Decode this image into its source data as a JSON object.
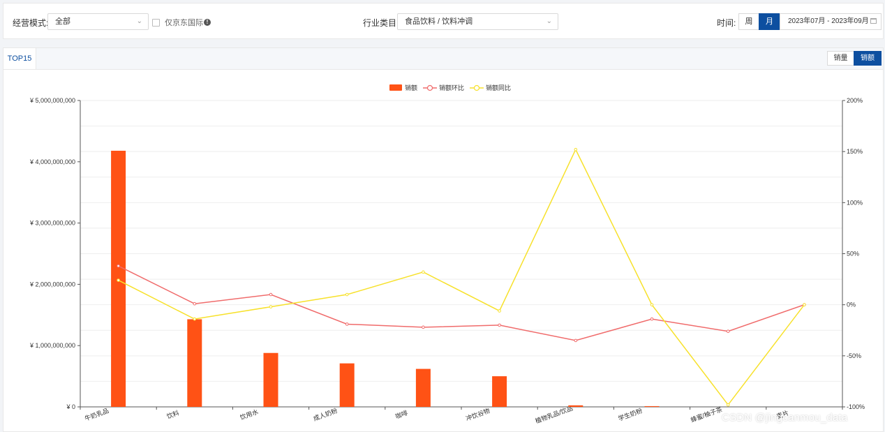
{
  "filters": {
    "mode_label": "经营模式:",
    "mode_value": "全部",
    "jd_intl_label": "仅京东国际",
    "industry_label": "行业类目:",
    "industry_value": "食品饮料 / 饮料冲调",
    "time_label": "时间:",
    "week_label": "周",
    "month_label": "月",
    "date_range": "2023年07月 - 2023年09月"
  },
  "tabs": {
    "top15": "TOP15"
  },
  "toggle": {
    "volume": "销量",
    "sales": "销额"
  },
  "legend": {
    "bar": "销额",
    "mom": "销额环比",
    "yoy": "销额同比"
  },
  "colors": {
    "bar": "#ff5215",
    "mom": "#f06b6b",
    "yoy": "#f7e12b",
    "accent": "#0d4fa0"
  },
  "chart_data": {
    "type": "bar+line",
    "categories": [
      "牛奶乳品",
      "饮料",
      "饮用水",
      "成人奶粉",
      "咖啡",
      "冲饮谷物",
      "植物乳品/饮品",
      "学生奶粉",
      "蜂蜜/柚子茶",
      "麦片"
    ],
    "left_axis": {
      "ylim": [
        0,
        5000000000
      ],
      "ticks": [
        "¥ 0",
        "¥ 1,000,000,000",
        "¥ 2,000,000,000",
        "¥ 3,000,000,000",
        "¥ 4,000,000,000",
        "¥ 5,000,000,000"
      ]
    },
    "right_axis": {
      "ylim": [
        -100,
        200
      ],
      "ticks": [
        "-100%",
        "-50%",
        "0%",
        "50%",
        "100%",
        "150%",
        "200%"
      ]
    },
    "series": [
      {
        "name": "销额",
        "type": "bar",
        "values": [
          4180000000,
          1430000000,
          880000000,
          710000000,
          620000000,
          500000000,
          25000000,
          12000000,
          0,
          0
        ]
      },
      {
        "name": "销额环比",
        "type": "line",
        "values": [
          38,
          1,
          10,
          -19,
          -22,
          -20,
          -35,
          -14,
          -26,
          0
        ]
      },
      {
        "name": "销额同比",
        "type": "line",
        "values": [
          24,
          -14,
          -2,
          10,
          32,
          -6,
          152,
          0,
          -98,
          0
        ]
      }
    ]
  },
  "watermark": "CSDN @jingcanmou_data"
}
